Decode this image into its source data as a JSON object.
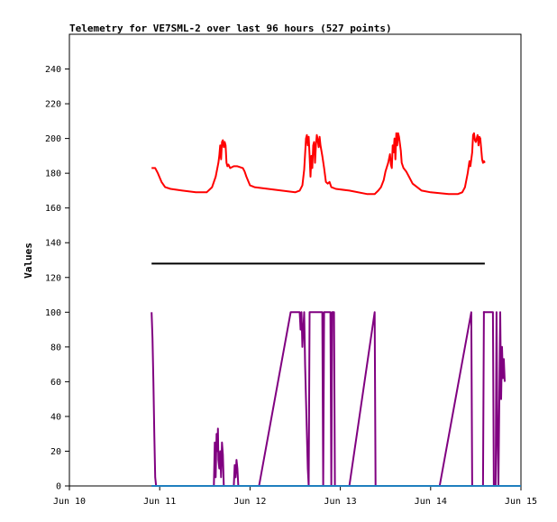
{
  "chart_data": {
    "type": "line",
    "title": "Telemetry for VE7SML-2 over last 96 hours (527 points)",
    "ylabel": "Values",
    "xlabel": "",
    "xlim": [
      0,
      5
    ],
    "ylim": [
      0,
      260
    ],
    "x_ticks": [
      {
        "x": 0,
        "label": "Jun 10"
      },
      {
        "x": 1,
        "label": "Jun 11"
      },
      {
        "x": 2,
        "label": "Jun 12"
      },
      {
        "x": 3,
        "label": "Jun 13"
      },
      {
        "x": 4,
        "label": "Jun 14"
      },
      {
        "x": 5,
        "label": "Jun 15"
      }
    ],
    "y_ticks": [
      0,
      20,
      40,
      60,
      80,
      100,
      120,
      140,
      160,
      180,
      200,
      220,
      240
    ],
    "grid": false,
    "series": [
      {
        "color": "#ff0000",
        "points": [
          [
            0.91,
            183
          ],
          [
            0.95,
            183
          ],
          [
            0.98,
            180
          ],
          [
            1.02,
            175
          ],
          [
            1.06,
            172
          ],
          [
            1.12,
            171
          ],
          [
            1.25,
            170
          ],
          [
            1.4,
            169
          ],
          [
            1.52,
            169
          ],
          [
            1.58,
            172
          ],
          [
            1.62,
            178
          ],
          [
            1.65,
            186
          ],
          [
            1.66,
            190
          ],
          [
            1.67,
            196
          ],
          [
            1.68,
            188
          ],
          [
            1.69,
            198
          ],
          [
            1.7,
            199
          ],
          [
            1.71,
            195
          ],
          [
            1.72,
            198
          ],
          [
            1.73,
            196
          ],
          [
            1.74,
            186
          ],
          [
            1.75,
            184
          ],
          [
            1.76,
            185
          ],
          [
            1.78,
            183
          ],
          [
            1.82,
            184
          ],
          [
            1.86,
            184
          ],
          [
            1.92,
            183
          ],
          [
            1.94,
            181
          ],
          [
            1.96,
            178
          ],
          [
            2.0,
            173
          ],
          [
            2.05,
            172
          ],
          [
            2.2,
            171
          ],
          [
            2.35,
            170
          ],
          [
            2.5,
            169
          ],
          [
            2.55,
            170
          ],
          [
            2.58,
            173
          ],
          [
            2.6,
            182
          ],
          [
            2.62,
            200
          ],
          [
            2.63,
            202
          ],
          [
            2.64,
            196
          ],
          [
            2.65,
            201
          ],
          [
            2.66,
            190
          ],
          [
            2.67,
            178
          ],
          [
            2.68,
            190
          ],
          [
            2.69,
            183
          ],
          [
            2.7,
            196
          ],
          [
            2.71,
            198
          ],
          [
            2.72,
            186
          ],
          [
            2.73,
            196
          ],
          [
            2.74,
            202
          ],
          [
            2.75,
            199
          ],
          [
            2.76,
            195
          ],
          [
            2.77,
            201
          ],
          [
            2.78,
            196
          ],
          [
            2.79,
            193
          ],
          [
            2.8,
            190
          ],
          [
            2.82,
            183
          ],
          [
            2.84,
            175
          ],
          [
            2.86,
            174
          ],
          [
            2.88,
            175
          ],
          [
            2.9,
            172
          ],
          [
            2.95,
            171
          ],
          [
            3.1,
            170
          ],
          [
            3.3,
            168
          ],
          [
            3.38,
            168
          ],
          [
            3.42,
            170
          ],
          [
            3.45,
            172
          ],
          [
            3.48,
            176
          ],
          [
            3.5,
            181
          ],
          [
            3.53,
            186
          ],
          [
            3.55,
            191
          ],
          [
            3.56,
            185
          ],
          [
            3.57,
            183
          ],
          [
            3.58,
            196
          ],
          [
            3.59,
            192
          ],
          [
            3.6,
            200
          ],
          [
            3.61,
            188
          ],
          [
            3.62,
            203
          ],
          [
            3.63,
            196
          ],
          [
            3.64,
            203
          ],
          [
            3.65,
            201
          ],
          [
            3.66,
            197
          ],
          [
            3.67,
            193
          ],
          [
            3.68,
            186
          ],
          [
            3.7,
            183
          ],
          [
            3.73,
            181
          ],
          [
            3.76,
            178
          ],
          [
            3.8,
            174
          ],
          [
            3.85,
            172
          ],
          [
            3.9,
            170
          ],
          [
            4.0,
            169
          ],
          [
            4.2,
            168
          ],
          [
            4.3,
            168
          ],
          [
            4.35,
            169
          ],
          [
            4.38,
            172
          ],
          [
            4.41,
            180
          ],
          [
            4.43,
            187
          ],
          [
            4.44,
            184
          ],
          [
            4.46,
            192
          ],
          [
            4.47,
            202
          ],
          [
            4.48,
            203
          ],
          [
            4.49,
            199
          ],
          [
            4.5,
            198
          ],
          [
            4.51,
            200
          ],
          [
            4.52,
            202
          ],
          [
            4.53,
            196
          ],
          [
            4.54,
            201
          ],
          [
            4.55,
            200
          ],
          [
            4.56,
            194
          ],
          [
            4.57,
            188
          ],
          [
            4.58,
            186
          ],
          [
            4.59,
            187
          ],
          [
            4.6,
            186
          ]
        ]
      },
      {
        "color": "#000000",
        "points": [
          [
            0.91,
            128
          ],
          [
            4.6,
            128
          ]
        ]
      },
      {
        "color": "#800080",
        "points": [
          [
            0.91,
            100
          ],
          [
            0.92,
            85
          ],
          [
            0.93,
            60
          ],
          [
            0.94,
            30
          ],
          [
            0.95,
            5
          ],
          [
            0.96,
            0
          ],
          [
            1.6,
            0
          ],
          [
            1.61,
            25
          ],
          [
            1.62,
            5
          ],
          [
            1.63,
            30
          ],
          [
            1.64,
            20
          ],
          [
            1.645,
            33
          ],
          [
            1.65,
            15
          ],
          [
            1.66,
            10
          ],
          [
            1.67,
            20
          ],
          [
            1.68,
            5
          ],
          [
            1.69,
            25
          ],
          [
            1.7,
            18
          ],
          [
            1.71,
            0
          ],
          [
            1.82,
            0
          ],
          [
            1.83,
            12
          ],
          [
            1.84,
            5
          ],
          [
            1.85,
            15
          ],
          [
            1.86,
            10
          ],
          [
            1.87,
            0
          ],
          [
            2.1,
            0
          ],
          [
            2.45,
            100
          ],
          [
            2.55,
            100
          ],
          [
            2.56,
            90
          ],
          [
            2.57,
            100
          ],
          [
            2.58,
            80
          ],
          [
            2.6,
            100
          ],
          [
            2.61,
            70
          ],
          [
            2.62,
            50
          ],
          [
            2.63,
            30
          ],
          [
            2.64,
            10
          ],
          [
            2.65,
            0
          ],
          [
            2.66,
            100
          ],
          [
            2.8,
            100
          ],
          [
            2.81,
            0
          ],
          [
            2.82,
            100
          ],
          [
            2.89,
            100
          ],
          [
            2.9,
            0
          ],
          [
            2.91,
            100
          ],
          [
            2.93,
            100
          ],
          [
            2.94,
            0
          ],
          [
            3.1,
            0
          ],
          [
            3.38,
            100
          ],
          [
            3.39,
            0
          ],
          [
            4.1,
            0
          ],
          [
            4.45,
            100
          ],
          [
            4.46,
            0
          ],
          [
            4.58,
            0
          ],
          [
            4.59,
            100
          ],
          [
            4.6,
            100
          ]
        ]
      },
      {
        "color": "#800080",
        "points": [
          [
            4.58,
            100
          ],
          [
            4.69,
            100
          ],
          [
            4.7,
            0
          ],
          [
            4.72,
            0
          ],
          [
            4.73,
            100
          ],
          [
            4.74,
            30
          ],
          [
            4.75,
            0
          ],
          [
            4.77,
            100
          ],
          [
            4.78,
            50
          ],
          [
            4.79,
            80
          ],
          [
            4.8,
            62
          ],
          [
            4.81,
            73
          ],
          [
            4.82,
            60
          ]
        ]
      },
      {
        "color": "#1f7fbf",
        "points": [
          [
            0.91,
            0
          ],
          [
            5.0,
            0
          ]
        ]
      }
    ]
  }
}
